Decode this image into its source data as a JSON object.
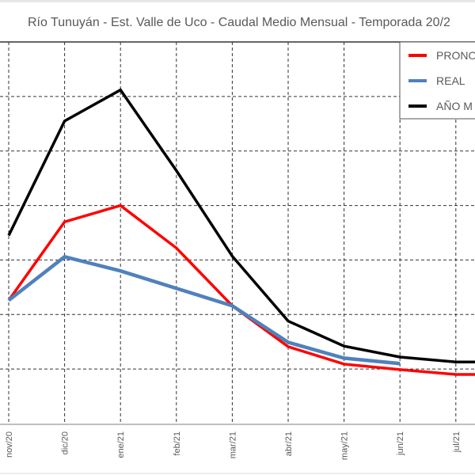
{
  "chart_data": {
    "type": "line",
    "title": "Río Tunuyán - Est. Valle de Uco - Caudal Medio Mensual - Temporada 20/2",
    "xlabel": "",
    "ylabel": "",
    "categories": [
      "nov/20",
      "dic/20",
      "ene/21",
      "feb/21",
      "mar/21",
      "abr/21",
      "may/21",
      "jun/21",
      "jul/21"
    ],
    "ylim": [
      0,
      7
    ],
    "grid": true,
    "legend_placement": "top-right",
    "series": [
      {
        "name": "PRONO",
        "color": "#ff0000",
        "values": [
          2.26,
          3.7,
          4.0,
          3.22,
          2.16,
          1.41,
          1.09,
          0.99,
          0.9
        ]
      },
      {
        "name": "REAL",
        "color": "#4f81bd",
        "values": [
          2.26,
          3.06,
          2.8,
          2.48,
          2.16,
          1.49,
          1.2,
          1.1,
          null
        ]
      },
      {
        "name": "AÑO M",
        "color": "#000000",
        "values": [
          3.45,
          5.55,
          6.12,
          4.64,
          3.07,
          1.88,
          1.42,
          1.22,
          1.13
        ]
      }
    ]
  }
}
